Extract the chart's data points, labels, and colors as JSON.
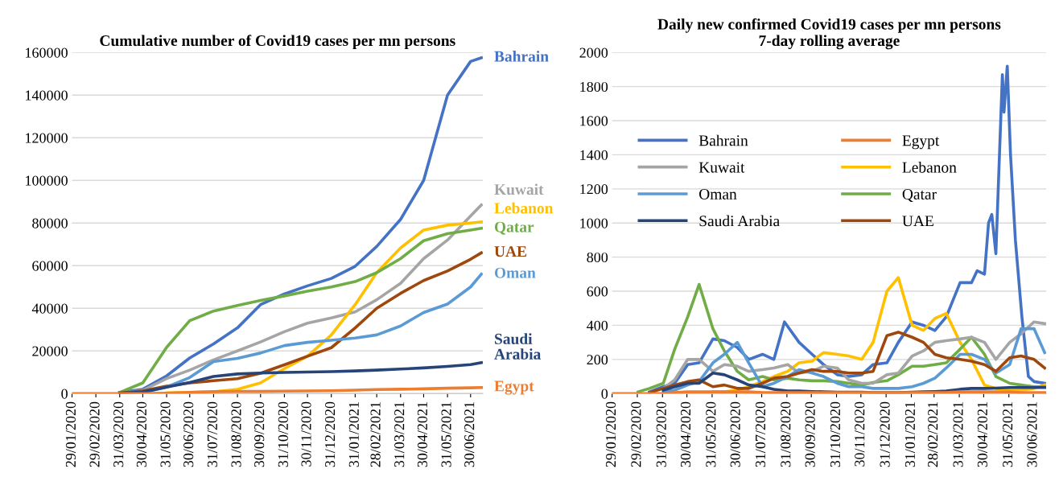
{
  "chart_data": [
    {
      "type": "line",
      "title": "Cumulative number of Covid19 cases per mn persons",
      "x": [
        "2020-01-29",
        "2020-02-29",
        "2020-03-31",
        "2020-04-30",
        "2020-05-31",
        "2020-06-30",
        "2020-07-31",
        "2020-08-31",
        "2020-09-30",
        "2020-10-31",
        "2020-11-30",
        "2020-12-31",
        "2021-01-31",
        "2021-02-28",
        "2021-03-31",
        "2021-04-30",
        "2021-05-31",
        "2021-06-30",
        "2021-07-14"
      ],
      "series": [
        {
          "name": "Bahrain",
          "color": "#4472c4",
          "values": [
            null,
            null,
            500,
            2000,
            8300,
            16700,
            23300,
            30800,
            41700,
            46700,
            50500,
            54000,
            59700,
            69000,
            81700,
            100000,
            140000,
            155800,
            157500
          ]
        },
        {
          "name": "Kuwait",
          "color": "#a5a5a5",
          "values": [
            null,
            null,
            300,
            1500,
            7000,
            11000,
            15800,
            20000,
            24200,
            29000,
            33000,
            35500,
            38300,
            44000,
            51700,
            63300,
            72000,
            83300,
            88500
          ]
        },
        {
          "name": "Lebanon",
          "color": "#ffc000",
          "values": [
            null,
            null,
            null,
            null,
            300,
            500,
            800,
            2000,
            5000,
            11700,
            17500,
            27500,
            41700,
            56700,
            68300,
            76700,
            79000,
            80000,
            80500
          ]
        },
        {
          "name": "Qatar",
          "color": "#70ad47",
          "values": [
            null,
            null,
            500,
            5000,
            21700,
            34200,
            38700,
            41300,
            43700,
            45800,
            48000,
            50000,
            52500,
            56700,
            63300,
            71700,
            75000,
            76700,
            77500
          ]
        },
        {
          "name": "UAE",
          "color": "#9e480e",
          "values": [
            null,
            null,
            300,
            1200,
            3500,
            5000,
            6000,
            7000,
            9500,
            13500,
            17500,
            21500,
            30800,
            40000,
            47000,
            53000,
            57500,
            63000,
            66000
          ]
        },
        {
          "name": "Oman",
          "color": "#5b9bd5",
          "values": [
            null,
            null,
            null,
            500,
            3000,
            7500,
            15000,
            16500,
            19000,
            22500,
            24000,
            25000,
            26000,
            27500,
            31700,
            38000,
            42000,
            50000,
            56000
          ]
        },
        {
          "name": "Saudi Arabia",
          "color": "#264478",
          "values": [
            null,
            null,
            200,
            700,
            3000,
            5200,
            8000,
            9200,
            9600,
            9900,
            10100,
            10300,
            10600,
            11000,
            11500,
            12000,
            12700,
            13600,
            14500
          ]
        },
        {
          "name": "Egypt",
          "color": "#ed7d31",
          "values": [
            0,
            0,
            0,
            0,
            200,
            500,
            900,
            1000,
            1000,
            1100,
            1200,
            1300,
            1600,
            1900,
            2000,
            2200,
            2500,
            2700,
            2800
          ]
        }
      ],
      "xlim": [
        "2020-01-29",
        "2021-07-16"
      ],
      "xticks": [
        {
          "value": "2020-01-29",
          "label": "29/01/2020"
        },
        {
          "value": "2020-02-29",
          "label": "29/02/2020"
        },
        {
          "value": "2020-03-31",
          "label": "31/03/2020"
        },
        {
          "value": "2020-04-30",
          "label": "30/04/2020"
        },
        {
          "value": "2020-05-31",
          "label": "31/05/2020"
        },
        {
          "value": "2020-06-30",
          "label": "30/06/2020"
        },
        {
          "value": "2020-07-31",
          "label": "31/07/2020"
        },
        {
          "value": "2020-08-31",
          "label": "31/08/2020"
        },
        {
          "value": "2020-09-30",
          "label": "30/09/2020"
        },
        {
          "value": "2020-10-31",
          "label": "31/10/2020"
        },
        {
          "value": "2020-11-30",
          "label": "30/11/2020"
        },
        {
          "value": "2020-12-31",
          "label": "31/12/2020"
        },
        {
          "value": "2021-01-31",
          "label": "31/01/2021"
        },
        {
          "value": "2021-02-28",
          "label": "28/02/2021"
        },
        {
          "value": "2021-03-31",
          "label": "31/03/2021"
        },
        {
          "value": "2021-04-30",
          "label": "30/04/2021"
        },
        {
          "value": "2021-05-31",
          "label": "31/05/2021"
        },
        {
          "value": "2021-06-30",
          "label": "30/06/2021"
        }
      ],
      "ylim": [
        0,
        160000
      ],
      "yticks": [
        0,
        20000,
        40000,
        60000,
        80000,
        100000,
        120000,
        140000,
        160000
      ],
      "grid": "y",
      "legend": false,
      "marker": "none",
      "line_style": "solid"
    },
    {
      "type": "line",
      "title": "Daily new confirmed Covid19 cases per mn persons\n7-day rolling average",
      "x": [
        "2020-01-29",
        "2020-02-15",
        "2020-03-01",
        "2020-03-15",
        "2020-04-01",
        "2020-04-15",
        "2020-05-01",
        "2020-05-15",
        "2020-06-01",
        "2020-06-15",
        "2020-07-01",
        "2020-07-15",
        "2020-08-01",
        "2020-08-15",
        "2020-09-01",
        "2020-09-15",
        "2020-10-01",
        "2020-10-15",
        "2020-11-01",
        "2020-11-15",
        "2020-12-01",
        "2020-12-15",
        "2021-01-01",
        "2021-01-15",
        "2021-02-01",
        "2021-02-15",
        "2021-03-01",
        "2021-03-15",
        "2021-04-01",
        "2021-04-15",
        "2021-05-01",
        "2021-05-15",
        "2021-06-01",
        "2021-06-15",
        "2021-07-01",
        "2021-07-14"
      ],
      "series": [
        {
          "name": "Bahrain",
          "color": "#4472c4",
          "x": [
            "2020-03-15",
            "2020-04-01",
            "2020-04-15",
            "2020-05-01",
            "2020-05-15",
            "2020-06-01",
            "2020-06-15",
            "2020-07-01",
            "2020-07-15",
            "2020-08-01",
            "2020-08-15",
            "2020-08-28",
            "2020-09-15",
            "2020-10-01",
            "2020-10-15",
            "2020-11-01",
            "2020-11-15",
            "2020-12-01",
            "2020-12-15",
            "2021-01-01",
            "2021-01-15",
            "2021-02-01",
            "2021-02-15",
            "2021-03-01",
            "2021-03-15",
            "2021-04-01",
            "2021-04-15",
            "2021-04-22",
            "2021-05-01",
            "2021-05-06",
            "2021-05-10",
            "2021-05-15",
            "2021-05-23",
            "2021-05-25",
            "2021-05-29",
            "2021-06-02",
            "2021-06-08",
            "2021-06-16",
            "2021-06-24",
            "2021-07-01",
            "2021-07-14"
          ],
          "values": [
            10,
            40,
            60,
            170,
            180,
            320,
            310,
            270,
            200,
            230,
            200,
            420,
            300,
            230,
            170,
            110,
            100,
            110,
            170,
            180,
            300,
            420,
            400,
            370,
            450,
            650,
            650,
            720,
            700,
            1000,
            1050,
            820,
            1870,
            1650,
            1920,
            1400,
            900,
            450,
            100,
            70,
            60
          ]
        },
        {
          "name": "Egypt",
          "color": "#ed7d31",
          "values": [
            0,
            0,
            0,
            0,
            0,
            5,
            10,
            10,
            10,
            10,
            10,
            10,
            5,
            5,
            5,
            5,
            5,
            5,
            5,
            5,
            5,
            5,
            5,
            5,
            5,
            5,
            5,
            5,
            10,
            10,
            10,
            10,
            10,
            5,
            5,
            5
          ]
        },
        {
          "name": "Kuwait",
          "color": "#a5a5a5",
          "values": [
            null,
            null,
            null,
            null,
            30,
            80,
            200,
            200,
            130,
            170,
            160,
            130,
            140,
            150,
            170,
            120,
            130,
            160,
            150,
            80,
            60,
            60,
            110,
            120,
            220,
            250,
            300,
            310,
            320,
            330,
            300,
            200,
            300,
            350,
            420,
            410
          ]
        },
        {
          "name": "Lebanon",
          "color": "#ffc000",
          "values": [
            null,
            null,
            null,
            null,
            null,
            null,
            null,
            null,
            10,
            10,
            20,
            40,
            70,
            100,
            130,
            180,
            190,
            240,
            230,
            220,
            200,
            300,
            600,
            680,
            400,
            370,
            440,
            470,
            300,
            200,
            50,
            30,
            20,
            20,
            30,
            50
          ]
        },
        {
          "name": "Oman",
          "color": "#5b9bd5",
          "values": [
            null,
            null,
            null,
            null,
            10,
            20,
            50,
            70,
            180,
            230,
            300,
            180,
            40,
            60,
            100,
            140,
            120,
            100,
            60,
            40,
            40,
            30,
            30,
            30,
            40,
            60,
            90,
            150,
            230,
            230,
            200,
            120,
            170,
            380,
            380,
            240
          ]
        },
        {
          "name": "Qatar",
          "color": "#70ad47",
          "values": [
            null,
            null,
            10,
            30,
            60,
            260,
            450,
            640,
            380,
            250,
            130,
            80,
            100,
            80,
            90,
            80,
            75,
            75,
            70,
            60,
            50,
            65,
            75,
            110,
            160,
            160,
            170,
            180,
            260,
            330,
            230,
            100,
            60,
            50,
            40,
            40
          ]
        },
        {
          "name": "Saudi Arabia",
          "color": "#264478",
          "values": [
            null,
            null,
            null,
            null,
            20,
            40,
            60,
            60,
            120,
            110,
            80,
            50,
            40,
            25,
            15,
            15,
            12,
            10,
            8,
            8,
            8,
            6,
            5,
            5,
            8,
            10,
            12,
            15,
            25,
            30,
            30,
            32,
            35,
            35,
            35,
            35
          ]
        },
        {
          "name": "UAE",
          "color": "#9e480e",
          "values": [
            null,
            null,
            null,
            5,
            30,
            50,
            70,
            80,
            40,
            50,
            30,
            30,
            60,
            90,
            100,
            120,
            140,
            130,
            130,
            120,
            120,
            130,
            340,
            360,
            330,
            300,
            230,
            210,
            200,
            190,
            170,
            130,
            210,
            220,
            200,
            150
          ]
        }
      ],
      "xlim": [
        "2020-01-29",
        "2021-07-16"
      ],
      "xticks": [
        {
          "value": "2020-01-29",
          "label": "29/01/2020"
        },
        {
          "value": "2020-02-29",
          "label": "29/02/2020"
        },
        {
          "value": "2020-03-31",
          "label": "31/03/2020"
        },
        {
          "value": "2020-04-30",
          "label": "30/04/2020"
        },
        {
          "value": "2020-05-31",
          "label": "31/05/2020"
        },
        {
          "value": "2020-06-30",
          "label": "30/06/2020"
        },
        {
          "value": "2020-07-31",
          "label": "31/07/2020"
        },
        {
          "value": "2020-08-31",
          "label": "31/08/2020"
        },
        {
          "value": "2020-09-30",
          "label": "30/09/2020"
        },
        {
          "value": "2020-10-31",
          "label": "31/10/2020"
        },
        {
          "value": "2020-11-30",
          "label": "30/11/2020"
        },
        {
          "value": "2020-12-31",
          "label": "31/12/2020"
        },
        {
          "value": "2021-01-31",
          "label": "31/01/2021"
        },
        {
          "value": "2021-02-28",
          "label": "28/02/2021"
        },
        {
          "value": "2021-03-31",
          "label": "31/03/2021"
        },
        {
          "value": "2021-04-30",
          "label": "30/04/2021"
        },
        {
          "value": "2021-05-31",
          "label": "31/05/2021"
        },
        {
          "value": "2021-06-30",
          "label": "30/06/2021"
        }
      ],
      "ylim": [
        0,
        2000
      ],
      "yticks": [
        0,
        200,
        400,
        600,
        800,
        1000,
        1200,
        1400,
        1600,
        1800,
        2000
      ],
      "grid": "y",
      "legend": "top left",
      "marker": "none",
      "line_style": "solid"
    }
  ]
}
